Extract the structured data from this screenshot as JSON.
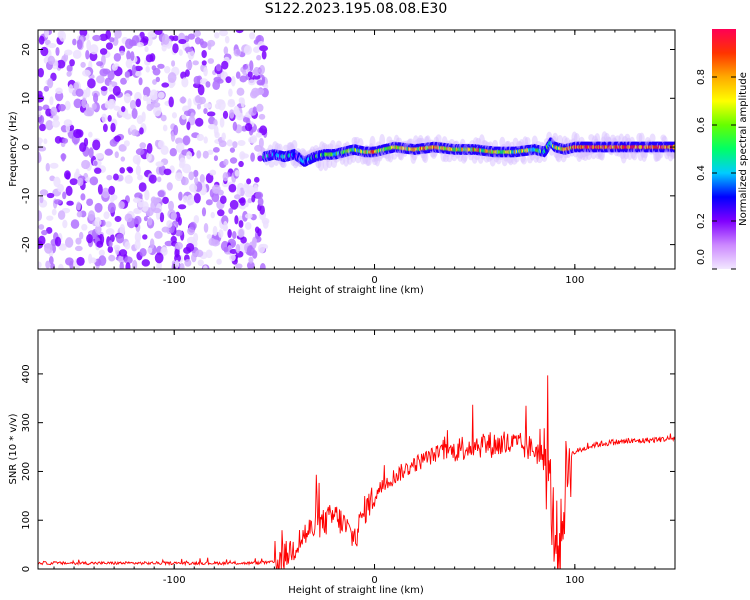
{
  "title": "S122.2023.195.08.08.E30",
  "chart_data": [
    {
      "type": "heatmap",
      "xlabel": "Height of straight line (km)",
      "ylabel": "Frequency (Hz)",
      "xlim": [
        -168,
        150
      ],
      "ylim": [
        -25,
        24
      ],
      "xticks": [
        -100,
        0,
        100
      ],
      "yticks": [
        -20,
        -10,
        0,
        10,
        20
      ],
      "grid": false,
      "noise_region_x": [
        -168,
        -54
      ],
      "signal_track": {
        "x": [
          -55,
          -50,
          -45,
          -40,
          -35,
          -30,
          -25,
          -20,
          -15,
          -10,
          -5,
          0,
          5,
          10,
          20,
          30,
          40,
          50,
          60,
          70,
          80,
          85,
          88,
          90,
          95,
          100,
          110,
          120,
          130,
          140,
          150
        ],
        "freq": [
          -2,
          -1.5,
          -2,
          -1.5,
          -3,
          -2,
          -1.5,
          -1.5,
          -1,
          -0.5,
          -1,
          -1,
          -0.5,
          0,
          -0.5,
          0,
          -0.5,
          -0.5,
          -1,
          -1,
          -0.5,
          -1,
          1,
          0,
          -0.5,
          0,
          0,
          0,
          0,
          0,
          0
        ],
        "amplitude": [
          0.3,
          0.3,
          0.35,
          0.3,
          0.3,
          0.4,
          0.45,
          0.5,
          0.5,
          0.55,
          0.6,
          0.75,
          0.6,
          0.65,
          0.7,
          0.75,
          0.6,
          0.7,
          0.65,
          0.6,
          0.55,
          0.35,
          0.5,
          0.6,
          0.7,
          0.85,
          0.9,
          0.9,
          0.85,
          0.9,
          0.9
        ]
      }
    },
    {
      "type": "line",
      "xlabel": "Height of straight line (km)",
      "ylabel": "SNR (10 * v/v)",
      "xlim": [
        -168,
        150
      ],
      "ylim": [
        0,
        490
      ],
      "xticks": [
        -100,
        0,
        100
      ],
      "yticks": [
        0,
        100,
        200,
        300,
        400
      ],
      "grid": false,
      "series": [
        {
          "color": "#ff0000",
          "x": [
            -168,
            -150,
            -120,
            -100,
            -80,
            -60,
            -50,
            -45,
            -40,
            -35,
            -30,
            -25,
            -20,
            -15,
            -10,
            -5,
            0,
            5,
            10,
            20,
            30,
            40,
            50,
            60,
            70,
            80,
            85,
            88,
            90,
            93,
            95,
            97,
            100,
            110,
            120,
            130,
            140,
            150
          ],
          "y": [
            12,
            12,
            12,
            12,
            12,
            12,
            14,
            25,
            45,
            70,
            85,
            95,
            110,
            90,
            60,
            120,
            150,
            175,
            190,
            215,
            235,
            245,
            255,
            255,
            255,
            245,
            225,
            150,
            60,
            50,
            160,
            230,
            240,
            255,
            260,
            262,
            265,
            268
          ]
        }
      ]
    },
    {
      "type": "colorbar",
      "label": "Normalized spectral amplitude",
      "range": [
        0,
        1
      ],
      "ticks": [
        "0.0",
        "0.2",
        "0.4",
        "0.6",
        "0.8"
      ],
      "colormap": [
        "#f2e8ff",
        "#cc88ff",
        "#8000ff",
        "#0000ff",
        "#00ccff",
        "#00ff66",
        "#66ff00",
        "#ffff00",
        "#ffaa00",
        "#ff3300",
        "#ff0055"
      ]
    }
  ]
}
